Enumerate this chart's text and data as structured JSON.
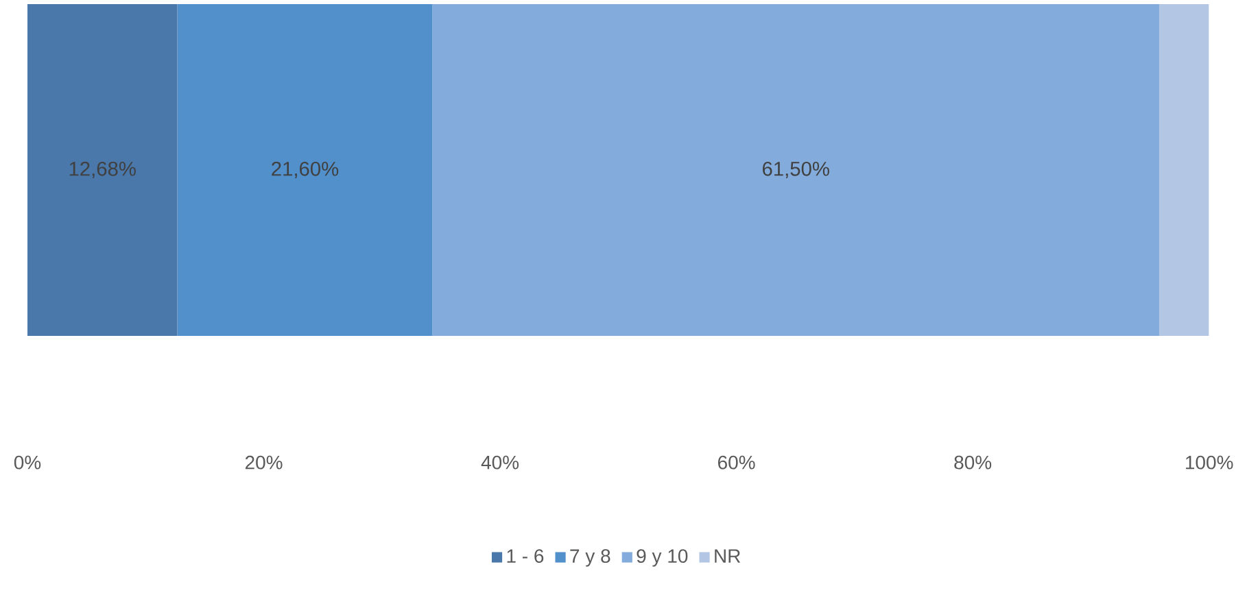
{
  "chart_data": {
    "type": "bar",
    "orientation": "horizontal",
    "stacked": true,
    "categories": [
      null
    ],
    "series": [
      {
        "name": "1 - 6",
        "color": "#4a78ab",
        "values": [
          12.68
        ],
        "value_labels": [
          "12,68%"
        ]
      },
      {
        "name": "7 y 8",
        "color": "#5290cc",
        "values": [
          21.6
        ],
        "value_labels": [
          "21,60%"
        ]
      },
      {
        "name": "9 y 10",
        "color": "#83acdc",
        "values": [
          61.5
        ],
        "value_labels": [
          "61,50%"
        ]
      },
      {
        "name": "NR",
        "color": "#b3c7e4",
        "values": [
          4.2
        ],
        "value_labels": [
          null
        ]
      }
    ],
    "xlim": [
      0,
      100
    ],
    "xticks": [
      {
        "value": 0,
        "label": "0%"
      },
      {
        "value": 20,
        "label": "20%"
      },
      {
        "value": 40,
        "label": "40%"
      },
      {
        "value": 60,
        "label": "60%"
      },
      {
        "value": 80,
        "label": "80%"
      },
      {
        "value": 100,
        "label": "100%"
      }
    ],
    "legend": "bottom"
  }
}
